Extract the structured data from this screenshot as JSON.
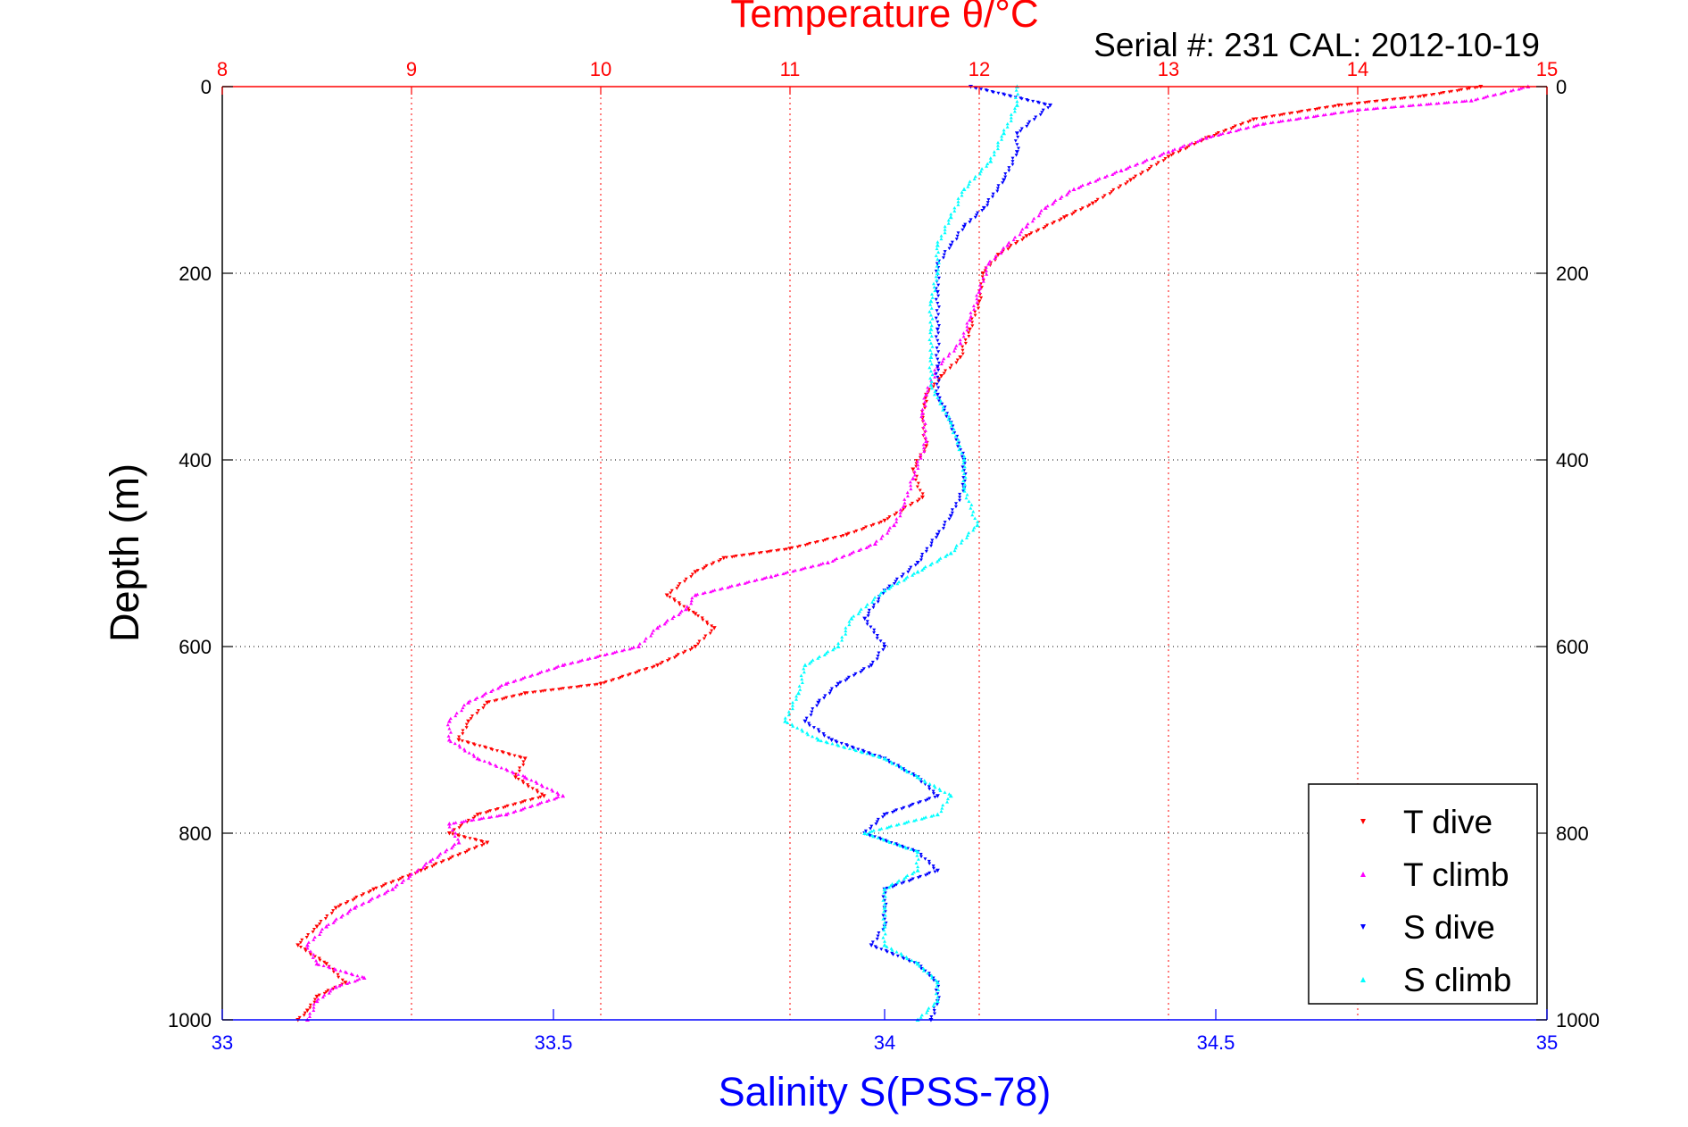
{
  "chart_data": {
    "type": "scatter",
    "title": "Temperature θ/°C",
    "subtitle": "Serial #: 231   CAL: 2012-10-19",
    "xlabel_bottom": "Salinity S(PSS-78)",
    "ylabel": "Depth (m)",
    "axes": {
      "temperature": {
        "range": [
          8,
          15
        ],
        "ticks": [
          "8",
          "9",
          "10",
          "11",
          "12",
          "13",
          "14",
          "15"
        ],
        "color": "#ff0000",
        "position": "top",
        "grid": true
      },
      "salinity": {
        "range": [
          33,
          35
        ],
        "ticks": [
          "33",
          "33.5",
          "34",
          "34.5",
          "35"
        ],
        "color": "#0000ff",
        "position": "bottom"
      },
      "depth": {
        "range": [
          0,
          1000
        ],
        "reversed": true,
        "ticks": [
          "0",
          "200",
          "400",
          "600",
          "800",
          "1000"
        ],
        "grid": true
      }
    },
    "legend": {
      "placement": "bottom-right"
    },
    "series": [
      {
        "name": "T dive",
        "axis": "temperature",
        "color": "#ff0000",
        "points": [
          [
            14.65,
            0
          ],
          [
            14.35,
            10
          ],
          [
            13.9,
            20
          ],
          [
            13.45,
            35
          ],
          [
            13.2,
            55
          ],
          [
            13.0,
            75
          ],
          [
            12.8,
            100
          ],
          [
            12.6,
            125
          ],
          [
            12.45,
            140
          ],
          [
            12.25,
            160
          ],
          [
            12.1,
            180
          ],
          [
            12.02,
            200
          ],
          [
            12.0,
            230
          ],
          [
            11.95,
            260
          ],
          [
            11.9,
            290
          ],
          [
            11.8,
            310
          ],
          [
            11.72,
            330
          ],
          [
            11.7,
            355
          ],
          [
            11.72,
            385
          ],
          [
            11.65,
            410
          ],
          [
            11.7,
            440
          ],
          [
            11.5,
            465
          ],
          [
            11.3,
            480
          ],
          [
            11.0,
            495
          ],
          [
            10.65,
            505
          ],
          [
            10.5,
            520
          ],
          [
            10.35,
            545
          ],
          [
            10.5,
            565
          ],
          [
            10.6,
            580
          ],
          [
            10.5,
            600
          ],
          [
            10.3,
            620
          ],
          [
            10.0,
            640
          ],
          [
            9.6,
            650
          ],
          [
            9.4,
            660
          ],
          [
            9.3,
            680
          ],
          [
            9.25,
            700
          ],
          [
            9.6,
            720
          ],
          [
            9.55,
            740
          ],
          [
            9.7,
            760
          ],
          [
            9.35,
            780
          ],
          [
            9.2,
            800
          ],
          [
            9.4,
            810
          ],
          [
            9.05,
            840
          ],
          [
            8.8,
            860
          ],
          [
            8.6,
            880
          ],
          [
            8.5,
            900
          ],
          [
            8.4,
            920
          ],
          [
            8.55,
            940
          ],
          [
            8.65,
            960
          ],
          [
            8.5,
            975
          ],
          [
            8.45,
            990
          ],
          [
            8.4,
            1000
          ]
        ]
      },
      {
        "name": "T climb",
        "axis": "temperature",
        "color": "#ff00ff",
        "points": [
          [
            14.9,
            0
          ],
          [
            14.6,
            15
          ],
          [
            14.0,
            25
          ],
          [
            13.5,
            40
          ],
          [
            13.2,
            55
          ],
          [
            13.0,
            70
          ],
          [
            12.75,
            90
          ],
          [
            12.5,
            110
          ],
          [
            12.35,
            130
          ],
          [
            12.25,
            150
          ],
          [
            12.15,
            170
          ],
          [
            12.05,
            190
          ],
          [
            12.0,
            220
          ],
          [
            11.95,
            250
          ],
          [
            11.9,
            275
          ],
          [
            11.78,
            300
          ],
          [
            11.72,
            330
          ],
          [
            11.7,
            350
          ],
          [
            11.72,
            380
          ],
          [
            11.65,
            420
          ],
          [
            11.6,
            450
          ],
          [
            11.55,
            470
          ],
          [
            11.45,
            490
          ],
          [
            11.2,
            510
          ],
          [
            10.9,
            525
          ],
          [
            10.5,
            545
          ],
          [
            10.45,
            560
          ],
          [
            10.3,
            580
          ],
          [
            10.2,
            600
          ],
          [
            9.8,
            620
          ],
          [
            9.5,
            640
          ],
          [
            9.3,
            660
          ],
          [
            9.2,
            680
          ],
          [
            9.2,
            700
          ],
          [
            9.35,
            720
          ],
          [
            9.6,
            740
          ],
          [
            9.8,
            760
          ],
          [
            9.5,
            780
          ],
          [
            9.2,
            790
          ],
          [
            9.25,
            810
          ],
          [
            9.1,
            830
          ],
          [
            8.9,
            860
          ],
          [
            8.7,
            880
          ],
          [
            8.55,
            900
          ],
          [
            8.45,
            920
          ],
          [
            8.5,
            940
          ],
          [
            8.75,
            955
          ],
          [
            8.6,
            965
          ],
          [
            8.5,
            980
          ],
          [
            8.45,
            1000
          ]
        ]
      },
      {
        "name": "S dive",
        "axis": "salinity",
        "color": "#0000ff",
        "points": [
          [
            34.13,
            0
          ],
          [
            34.25,
            20
          ],
          [
            34.2,
            50
          ],
          [
            34.2,
            70
          ],
          [
            34.18,
            100
          ],
          [
            34.15,
            130
          ],
          [
            34.12,
            150
          ],
          [
            34.1,
            170
          ],
          [
            34.08,
            190
          ],
          [
            34.08,
            220
          ],
          [
            34.08,
            260
          ],
          [
            34.08,
            300
          ],
          [
            34.08,
            330
          ],
          [
            34.1,
            360
          ],
          [
            34.12,
            400
          ],
          [
            34.12,
            430
          ],
          [
            34.1,
            460
          ],
          [
            34.08,
            480
          ],
          [
            34.05,
            510
          ],
          [
            34.0,
            540
          ],
          [
            33.97,
            570
          ],
          [
            34.0,
            600
          ],
          [
            33.98,
            620
          ],
          [
            33.93,
            640
          ],
          [
            33.9,
            660
          ],
          [
            33.88,
            680
          ],
          [
            33.92,
            700
          ],
          [
            34.0,
            720
          ],
          [
            34.05,
            740
          ],
          [
            34.08,
            760
          ],
          [
            34.0,
            780
          ],
          [
            33.97,
            800
          ],
          [
            34.05,
            820
          ],
          [
            34.08,
            840
          ],
          [
            34.0,
            860
          ],
          [
            34.0,
            880
          ],
          [
            34.0,
            900
          ],
          [
            33.98,
            920
          ],
          [
            34.05,
            940
          ],
          [
            34.08,
            960
          ],
          [
            34.08,
            980
          ],
          [
            34.07,
            1000
          ]
        ]
      },
      {
        "name": "S climb",
        "axis": "salinity",
        "color": "#00ffff",
        "points": [
          [
            34.2,
            0
          ],
          [
            34.2,
            20
          ],
          [
            34.18,
            50
          ],
          [
            34.16,
            80
          ],
          [
            34.12,
            110
          ],
          [
            34.1,
            140
          ],
          [
            34.08,
            170
          ],
          [
            34.08,
            200
          ],
          [
            34.07,
            230
          ],
          [
            34.07,
            260
          ],
          [
            34.07,
            290
          ],
          [
            34.07,
            320
          ],
          [
            34.1,
            360
          ],
          [
            34.12,
            400
          ],
          [
            34.12,
            430
          ],
          [
            34.14,
            470
          ],
          [
            34.1,
            500
          ],
          [
            34.05,
            520
          ],
          [
            34.0,
            540
          ],
          [
            33.95,
            570
          ],
          [
            33.93,
            600
          ],
          [
            33.88,
            620
          ],
          [
            33.87,
            650
          ],
          [
            33.85,
            680
          ],
          [
            33.9,
            700
          ],
          [
            34.0,
            720
          ],
          [
            34.05,
            740
          ],
          [
            34.1,
            760
          ],
          [
            34.08,
            780
          ],
          [
            33.97,
            800
          ],
          [
            34.05,
            820
          ],
          [
            34.05,
            840
          ],
          [
            34.0,
            860
          ],
          [
            34.0,
            880
          ],
          [
            34.0,
            900
          ],
          [
            34.0,
            920
          ],
          [
            34.05,
            940
          ],
          [
            34.08,
            960
          ],
          [
            34.08,
            980
          ],
          [
            34.05,
            1000
          ]
        ]
      }
    ]
  }
}
